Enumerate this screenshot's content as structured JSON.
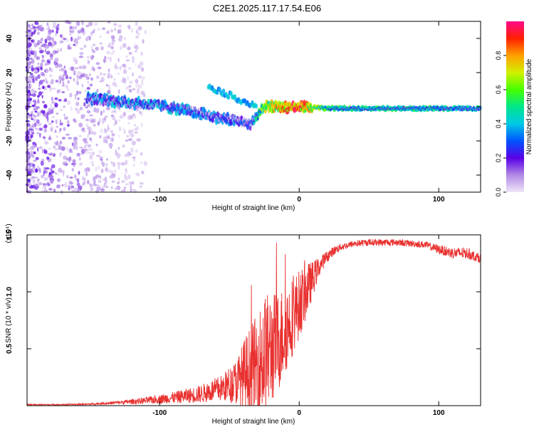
{
  "title": "C2E1.2025.117.17.54.E06",
  "chart_data": [
    {
      "type": "heatmap",
      "name": "spectrogram",
      "xlabel": "Height of straight line (km)",
      "ylabel": "Frequency (Hz)",
      "xlim": [
        -195,
        130
      ],
      "ylim": [
        -50,
        50
      ],
      "xticks": [
        -100,
        0,
        100
      ],
      "xtick_labels": [
        "-100",
        "0",
        "100"
      ],
      "yticks": [
        -40,
        -20,
        0,
        20,
        40
      ],
      "ytick_labels": [
        "-40",
        "-20",
        "0",
        "20",
        "40"
      ],
      "colorbar": {
        "label": "Normalized spectral amplitude",
        "range": [
          0,
          1
        ],
        "ticks": [
          0.0,
          0.2,
          0.4,
          0.6,
          0.8
        ],
        "tick_labels": [
          "0.0",
          "0.2",
          "0.4",
          "0.6",
          "0.8"
        ]
      },
      "ridge": {
        "x": [
          -150,
          -130,
          -110,
          -95,
          -85,
          -75,
          -65,
          -55,
          -45,
          -35,
          -25,
          -15,
          0,
          20,
          40,
          60,
          80,
          100,
          130
        ],
        "freq": [
          5,
          3,
          1.5,
          0,
          -1.5,
          -3,
          -5,
          -7,
          -8,
          -10,
          0,
          0,
          0,
          -1,
          -1,
          -1,
          -1,
          -1,
          -1
        ],
        "amplitude": [
          0.35,
          0.38,
          0.4,
          0.4,
          0.42,
          0.38,
          0.35,
          0.35,
          0.3,
          0.3,
          0.7,
          0.85,
          0.95,
          0.55,
          0.5,
          0.5,
          0.5,
          0.5,
          0.45
        ]
      }
    },
    {
      "type": "line",
      "name": "snr",
      "xlabel": "Height of straight line (km)",
      "ylabel": "SNR (10 * v/v)",
      "yscale_label": "(x10⁴)",
      "xlim": [
        -195,
        130
      ],
      "ylim": [
        0,
        1.5
      ],
      "xticks": [
        -100,
        0,
        100
      ],
      "xtick_labels": [
        "-100",
        "0",
        "100"
      ],
      "yticks": [
        0.5,
        1.0,
        1.5
      ],
      "ytick_labels": [
        "0.5",
        "1.0",
        "1.5"
      ],
      "color": "#e8312f",
      "envelope": {
        "x": [
          -195,
          -170,
          -150,
          -130,
          -110,
          -90,
          -70,
          -55,
          -45,
          -38,
          -30,
          -25,
          -20,
          -15,
          -10,
          -5,
          0,
          5,
          10,
          15,
          20,
          25,
          30,
          40,
          50,
          60,
          70,
          80,
          90,
          100,
          110,
          120,
          130
        ],
        "y": [
          0.01,
          0.01,
          0.015,
          0.03,
          0.05,
          0.08,
          0.12,
          0.18,
          0.25,
          0.35,
          0.45,
          0.55,
          0.6,
          0.65,
          0.75,
          0.85,
          0.95,
          1.05,
          1.15,
          1.25,
          1.32,
          1.37,
          1.4,
          1.43,
          1.44,
          1.44,
          1.44,
          1.43,
          1.42,
          1.38,
          1.35,
          1.35,
          1.3
        ],
        "spread": [
          0.005,
          0.005,
          0.008,
          0.015,
          0.03,
          0.05,
          0.08,
          0.12,
          0.2,
          0.35,
          0.45,
          0.55,
          0.5,
          0.45,
          0.4,
          0.35,
          0.3,
          0.25,
          0.15,
          0.08,
          0.05,
          0.04,
          0.03,
          0.03,
          0.03,
          0.03,
          0.03,
          0.03,
          0.03,
          0.04,
          0.05,
          0.05,
          0.04
        ]
      }
    }
  ]
}
